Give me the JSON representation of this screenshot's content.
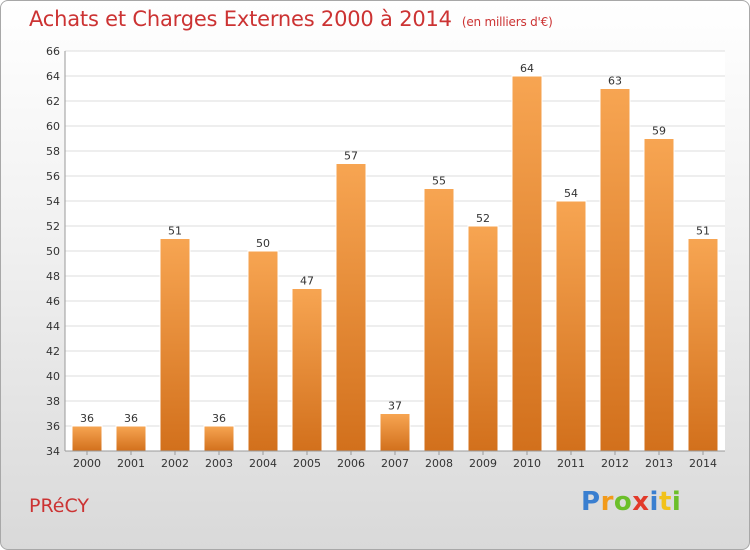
{
  "header": {
    "title": "Achats et Charges Externes 2000 à 2014",
    "unit": "(en milliers d'€)"
  },
  "footer": {
    "city": "PRéCY",
    "logo": {
      "letters": [
        "P",
        "r",
        "o",
        "x",
        "i",
        "t",
        "i"
      ],
      "colors": [
        "#3a7fd0",
        "#f29a1a",
        "#6cbf2a",
        "#e23a2a",
        "#3a7fd0",
        "#f2c21a",
        "#6cbf2a"
      ]
    }
  },
  "chart_data": {
    "type": "bar",
    "categories": [
      "2000",
      "2001",
      "2002",
      "2003",
      "2004",
      "2005",
      "2006",
      "2007",
      "2008",
      "2009",
      "2010",
      "2011",
      "2012",
      "2013",
      "2014"
    ],
    "values": [
      36,
      36,
      51,
      36,
      50,
      47,
      57,
      37,
      55,
      52,
      64,
      54,
      63,
      59,
      51
    ],
    "data_labels": [
      "36",
      "36",
      "51",
      "36",
      "50",
      "47",
      "57",
      "37",
      "55",
      "52",
      "64",
      "54",
      "63",
      "59",
      "51"
    ],
    "title": "Achats et Charges Externes 2000 à 2014",
    "xlabel": "",
    "ylabel": "",
    "ylim": [
      34,
      66
    ],
    "yticks": [
      "34",
      "36",
      "38",
      "40",
      "42",
      "44",
      "46",
      "48",
      "50",
      "52",
      "54",
      "56",
      "58",
      "60",
      "62",
      "64",
      "66"
    ],
    "grid": true,
    "legend": "none",
    "colors": {
      "bar_top": "#f7a552",
      "bar_bottom": "#d2701c",
      "text": "#333333",
      "grid": "#dddddd"
    }
  }
}
